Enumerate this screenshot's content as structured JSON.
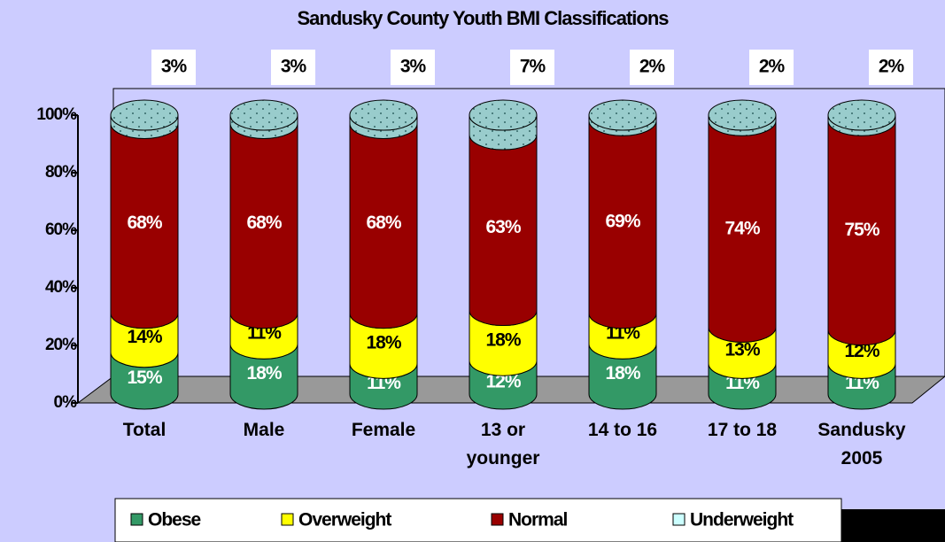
{
  "chart_data": {
    "type": "stacked_cylinder",
    "title": "Sandusky County Youth BMI Classifications",
    "categories": [
      "Total",
      "Male",
      "Female",
      "13 or younger",
      "14 to 16",
      "17 to 18",
      "Sandusky 2005"
    ],
    "series": [
      {
        "name": "Obese",
        "color": "#339966",
        "values": [
          15,
          18,
          11,
          12,
          18,
          11,
          11
        ],
        "value_labels": [
          "15%",
          "18%",
          "11%",
          "12%",
          "18%",
          "11%",
          "11%"
        ]
      },
      {
        "name": "Overweight",
        "color": "#ffff00",
        "values": [
          14,
          11,
          18,
          18,
          11,
          13,
          12
        ],
        "value_labels": [
          "14%",
          "11%",
          "18%",
          "18%",
          "11%",
          "13%",
          "12%"
        ]
      },
      {
        "name": "Normal",
        "color": "#990000",
        "values": [
          68,
          68,
          68,
          63,
          69,
          74,
          75
        ],
        "value_labels": [
          "68%",
          "68%",
          "68%",
          "63%",
          "69%",
          "74%",
          "75%"
        ]
      },
      {
        "name": "Underweight",
        "color": "#99cccc",
        "values": [
          3,
          3,
          3,
          7,
          2,
          2,
          2
        ],
        "value_labels": [
          "3%",
          "3%",
          "3%",
          "7%",
          "2%",
          "2%",
          "2%"
        ]
      }
    ],
    "ylim": [
      0,
      100
    ],
    "yticks": [
      {
        "value": 0,
        "label": "0%"
      },
      {
        "value": 20,
        "label": "20%"
      },
      {
        "value": 40,
        "label": "40%"
      },
      {
        "value": 60,
        "label": "60%"
      },
      {
        "value": 80,
        "label": "80%"
      },
      {
        "value": 100,
        "label": "100%"
      }
    ],
    "legend": "bottom"
  }
}
